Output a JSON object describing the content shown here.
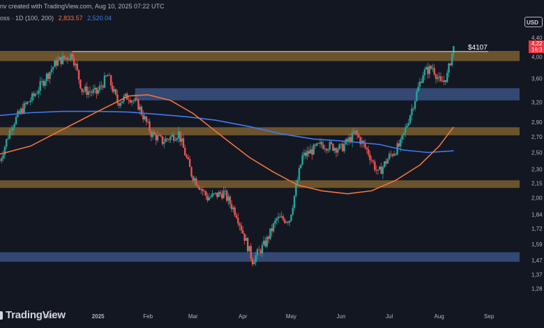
{
  "header": {
    "credit": "nv created with TradingView.com, Aug 10, 2025 07:22 UTC",
    "legend_prefix": "oss · 1D (100, 200)",
    "ma100_value": "2,833.57",
    "ma200_value": "2,520.04"
  },
  "currency_button": "USD",
  "brand": {
    "name": "TradingView"
  },
  "colors": {
    "background": "#131722",
    "up": "#26a69a",
    "down": "#ef5350",
    "ma100": "#f2743b",
    "ma200": "#3f7bf0",
    "supply_zone": "#8a6a32",
    "demand_zone": "#3f5a8f",
    "axis_text": "#b2b5be",
    "price_tag": "#f23645"
  },
  "chart_data": {
    "type": "candlestick",
    "x_tick_labels": [
      "Dec",
      "2025",
      "Feb",
      "Mar",
      "Apr",
      "May",
      "Jun",
      "Jul",
      "Aug",
      "Sep"
    ],
    "y_tick_labels": [
      "4,40",
      "4,00",
      "3,60",
      "3,20",
      "2,90",
      "2,70",
      "2,50",
      "2,30",
      "2,15",
      "2,00",
      "1,84",
      "1,72",
      "1,59",
      "1,47",
      "1,37",
      "1,28"
    ],
    "y_tick_values": [
      4400,
      4000,
      3600,
      3200,
      2900,
      2700,
      2500,
      2300,
      2150,
      2000,
      1840,
      1720,
      1590,
      1470,
      1370,
      1280
    ],
    "y_scale": "log",
    "ylim": [
      1230,
      4520
    ],
    "x_range": [
      "2024-11-01",
      "2025-09-20"
    ],
    "ma100_label": "2,833.57",
    "ma200_label": "2,520.04",
    "annotation_label": "$4107",
    "annotation_price": 4107,
    "annotation_start": "2024-12-16",
    "price_tag_top": "4,22",
    "price_tag_bottom": "16:3",
    "price_tag_value": 4220,
    "zones": [
      {
        "kind": "supply",
        "low": 3920,
        "high": 4120
      },
      {
        "kind": "demand",
        "low": 3230,
        "high": 3430,
        "start": "2025-01-24"
      },
      {
        "kind": "supply",
        "low": 2720,
        "high": 2830
      },
      {
        "kind": "supply",
        "low": 2100,
        "high": 2180
      },
      {
        "kind": "demand",
        "low": 1460,
        "high": 1530
      }
    ],
    "ma100_points": [
      [
        "2024-11-01",
        2480
      ],
      [
        "2024-11-20",
        2580
      ],
      [
        "2024-12-10",
        2800
      ],
      [
        "2024-12-31",
        3050
      ],
      [
        "2025-01-20",
        3300
      ],
      [
        "2025-02-01",
        3320
      ],
      [
        "2025-02-15",
        3230
      ],
      [
        "2025-03-01",
        3030
      ],
      [
        "2025-03-20",
        2690
      ],
      [
        "2025-04-05",
        2440
      ],
      [
        "2025-04-20",
        2270
      ],
      [
        "2025-05-05",
        2130
      ],
      [
        "2025-05-20",
        2070
      ],
      [
        "2025-06-05",
        2040
      ],
      [
        "2025-06-20",
        2070
      ],
      [
        "2025-07-05",
        2180
      ],
      [
        "2025-07-20",
        2350
      ],
      [
        "2025-08-01",
        2580
      ],
      [
        "2025-08-10",
        2834
      ]
    ],
    "ma200_points": [
      [
        "2024-11-01",
        3000
      ],
      [
        "2024-11-20",
        3040
      ],
      [
        "2024-12-10",
        3060
      ],
      [
        "2024-12-31",
        3060
      ],
      [
        "2025-01-20",
        3050
      ],
      [
        "2025-02-05",
        3020
      ],
      [
        "2025-02-25",
        2980
      ],
      [
        "2025-03-15",
        2930
      ],
      [
        "2025-04-05",
        2840
      ],
      [
        "2025-04-25",
        2740
      ],
      [
        "2025-05-15",
        2670
      ],
      [
        "2025-06-05",
        2640
      ],
      [
        "2025-06-25",
        2600
      ],
      [
        "2025-07-10",
        2530
      ],
      [
        "2025-07-25",
        2500
      ],
      [
        "2025-08-10",
        2520
      ]
    ],
    "close_path": [
      [
        "2024-11-01",
        2400
      ],
      [
        "2024-11-08",
        2850
      ],
      [
        "2024-11-15",
        3100
      ],
      [
        "2024-11-22",
        3300
      ],
      [
        "2024-11-29",
        3600
      ],
      [
        "2024-12-06",
        3900
      ],
      [
        "2024-12-16",
        4050
      ],
      [
        "2024-12-22",
        3400
      ],
      [
        "2024-12-31",
        3350
      ],
      [
        "2025-01-07",
        3650
      ],
      [
        "2025-01-13",
        3200
      ],
      [
        "2025-01-20",
        3300
      ],
      [
        "2025-01-26",
        3150
      ],
      [
        "2025-02-03",
        2750
      ],
      [
        "2025-02-10",
        2640
      ],
      [
        "2025-02-20",
        2750
      ],
      [
        "2025-02-28",
        2250
      ],
      [
        "2025-03-10",
        2000
      ],
      [
        "2025-03-20",
        2050
      ],
      [
        "2025-03-28",
        1850
      ],
      [
        "2025-04-07",
        1470
      ],
      [
        "2025-04-15",
        1600
      ],
      [
        "2025-04-22",
        1800
      ],
      [
        "2025-04-30",
        1800
      ],
      [
        "2025-05-08",
        2450
      ],
      [
        "2025-05-20",
        2600
      ],
      [
        "2025-06-01",
        2550
      ],
      [
        "2025-06-10",
        2750
      ],
      [
        "2025-06-18",
        2500
      ],
      [
        "2025-06-24",
        2250
      ],
      [
        "2025-07-01",
        2450
      ],
      [
        "2025-07-08",
        2600
      ],
      [
        "2025-07-15",
        3100
      ],
      [
        "2025-07-22",
        3700
      ],
      [
        "2025-07-28",
        3800
      ],
      [
        "2025-08-02",
        3500
      ],
      [
        "2025-08-06",
        3650
      ],
      [
        "2025-08-10",
        4220
      ]
    ]
  }
}
